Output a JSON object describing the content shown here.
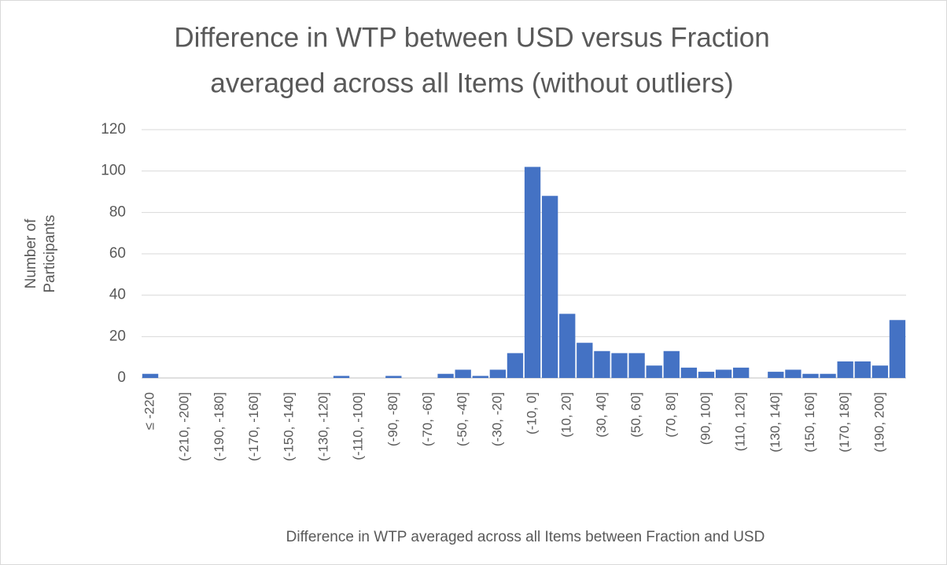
{
  "chart_data": {
    "type": "bar",
    "title": [
      "Difference in WTP between USD versus Fraction",
      "averaged across all Items (without outliers)"
    ],
    "y_label": [
      "Number of",
      "Participants"
    ],
    "x_label": "Difference in WTP averaged across all Items between Fraction and USD",
    "categories": [
      "≤ -220",
      null,
      "(-210, -200]",
      null,
      "(-190, -180]",
      null,
      "(-170, -160]",
      null,
      "(-150, -140]",
      null,
      "(-130, -120]",
      null,
      "(-110, -100]",
      null,
      "(-90, -80]",
      null,
      "(-70, -60]",
      null,
      "(-50, -40]",
      null,
      "(-30, -20]",
      null,
      "(-10, 0]",
      null,
      "(10, 20]",
      null,
      "(30, 40]",
      null,
      "(50, 60]",
      null,
      "(70, 80]",
      null,
      "(90, 100]",
      null,
      "(110, 120]",
      null,
      "(130, 140]",
      null,
      "(150, 160]",
      null,
      "(170, 180]",
      null,
      "(190, 200]",
      null
    ],
    "values": [
      2,
      0,
      0,
      0,
      0,
      0,
      0,
      0,
      0,
      0,
      0,
      1,
      0,
      0,
      1,
      0,
      0,
      2,
      4,
      1,
      4,
      12,
      102,
      88,
      31,
      17,
      13,
      12,
      12,
      6,
      13,
      5,
      3,
      4,
      5,
      0,
      3,
      4,
      2,
      2,
      8,
      8,
      6,
      28
    ],
    "color": "#4472c4",
    "ylim": [
      0,
      120
    ],
    "yticks": [
      0,
      20,
      40,
      60,
      80,
      100,
      120
    ],
    "grid": true
  }
}
